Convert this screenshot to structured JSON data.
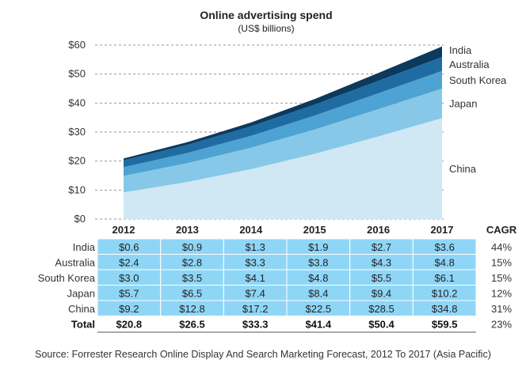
{
  "chart_data": {
    "type": "area",
    "stacked": true,
    "title": "Online advertising spend",
    "subtitle": "(US$ billions)",
    "x": [
      "2012",
      "2013",
      "2014",
      "2015",
      "2016",
      "2017"
    ],
    "y_ticks": [
      "$0",
      "$10",
      "$20",
      "$30",
      "$40",
      "$50",
      "$60"
    ],
    "ylim": [
      0,
      60
    ],
    "series": [
      {
        "name": "China",
        "values": [
          9.2,
          12.8,
          17.2,
          22.5,
          28.5,
          34.8
        ],
        "labels": [
          "$9.2",
          "$12.8",
          "$17.2",
          "$22.5",
          "$28.5",
          "$34.8"
        ],
        "cagr": "31%",
        "color": "#cfe8f4"
      },
      {
        "name": "Japan",
        "values": [
          5.7,
          6.5,
          7.4,
          8.4,
          9.4,
          10.2
        ],
        "labels": [
          "$5.7",
          "$6.5",
          "$7.4",
          "$8.4",
          "$9.4",
          "$10.2"
        ],
        "cagr": "12%",
        "color": "#87c8e8"
      },
      {
        "name": "South Korea",
        "values": [
          3.0,
          3.5,
          4.1,
          4.8,
          5.5,
          6.1
        ],
        "labels": [
          "$3.0",
          "$3.5",
          "$4.1",
          "$4.8",
          "$5.5",
          "$6.1"
        ],
        "cagr": "15%",
        "color": "#4ea3d3"
      },
      {
        "name": "Australia",
        "values": [
          2.4,
          2.8,
          3.3,
          3.8,
          4.3,
          4.8
        ],
        "labels": [
          "$2.4",
          "$2.8",
          "$3.3",
          "$3.8",
          "$4.3",
          "$4.8"
        ],
        "cagr": "15%",
        "color": "#1f6ca3"
      },
      {
        "name": "India",
        "values": [
          0.6,
          0.9,
          1.3,
          1.9,
          2.7,
          3.6
        ],
        "labels": [
          "$0.6",
          "$0.9",
          "$1.3",
          "$1.9",
          "$2.7",
          "$3.6"
        ],
        "cagr": "44%",
        "color": "#0c3a5c"
      }
    ],
    "table": {
      "cagr_header": "CAGR",
      "row_order": [
        "India",
        "Australia",
        "South Korea",
        "Japan",
        "China"
      ],
      "total": {
        "label": "Total",
        "values": [
          "$20.8",
          "$26.5",
          "$33.3",
          "$41.4",
          "$50.4",
          "$59.5"
        ],
        "cagr": "23%"
      },
      "cell_color": "#8fd6f6"
    },
    "source": "Source: Forrester Research Online Display And Search Marketing Forecast, 2012 To 2017 (Asia Pacific)"
  }
}
